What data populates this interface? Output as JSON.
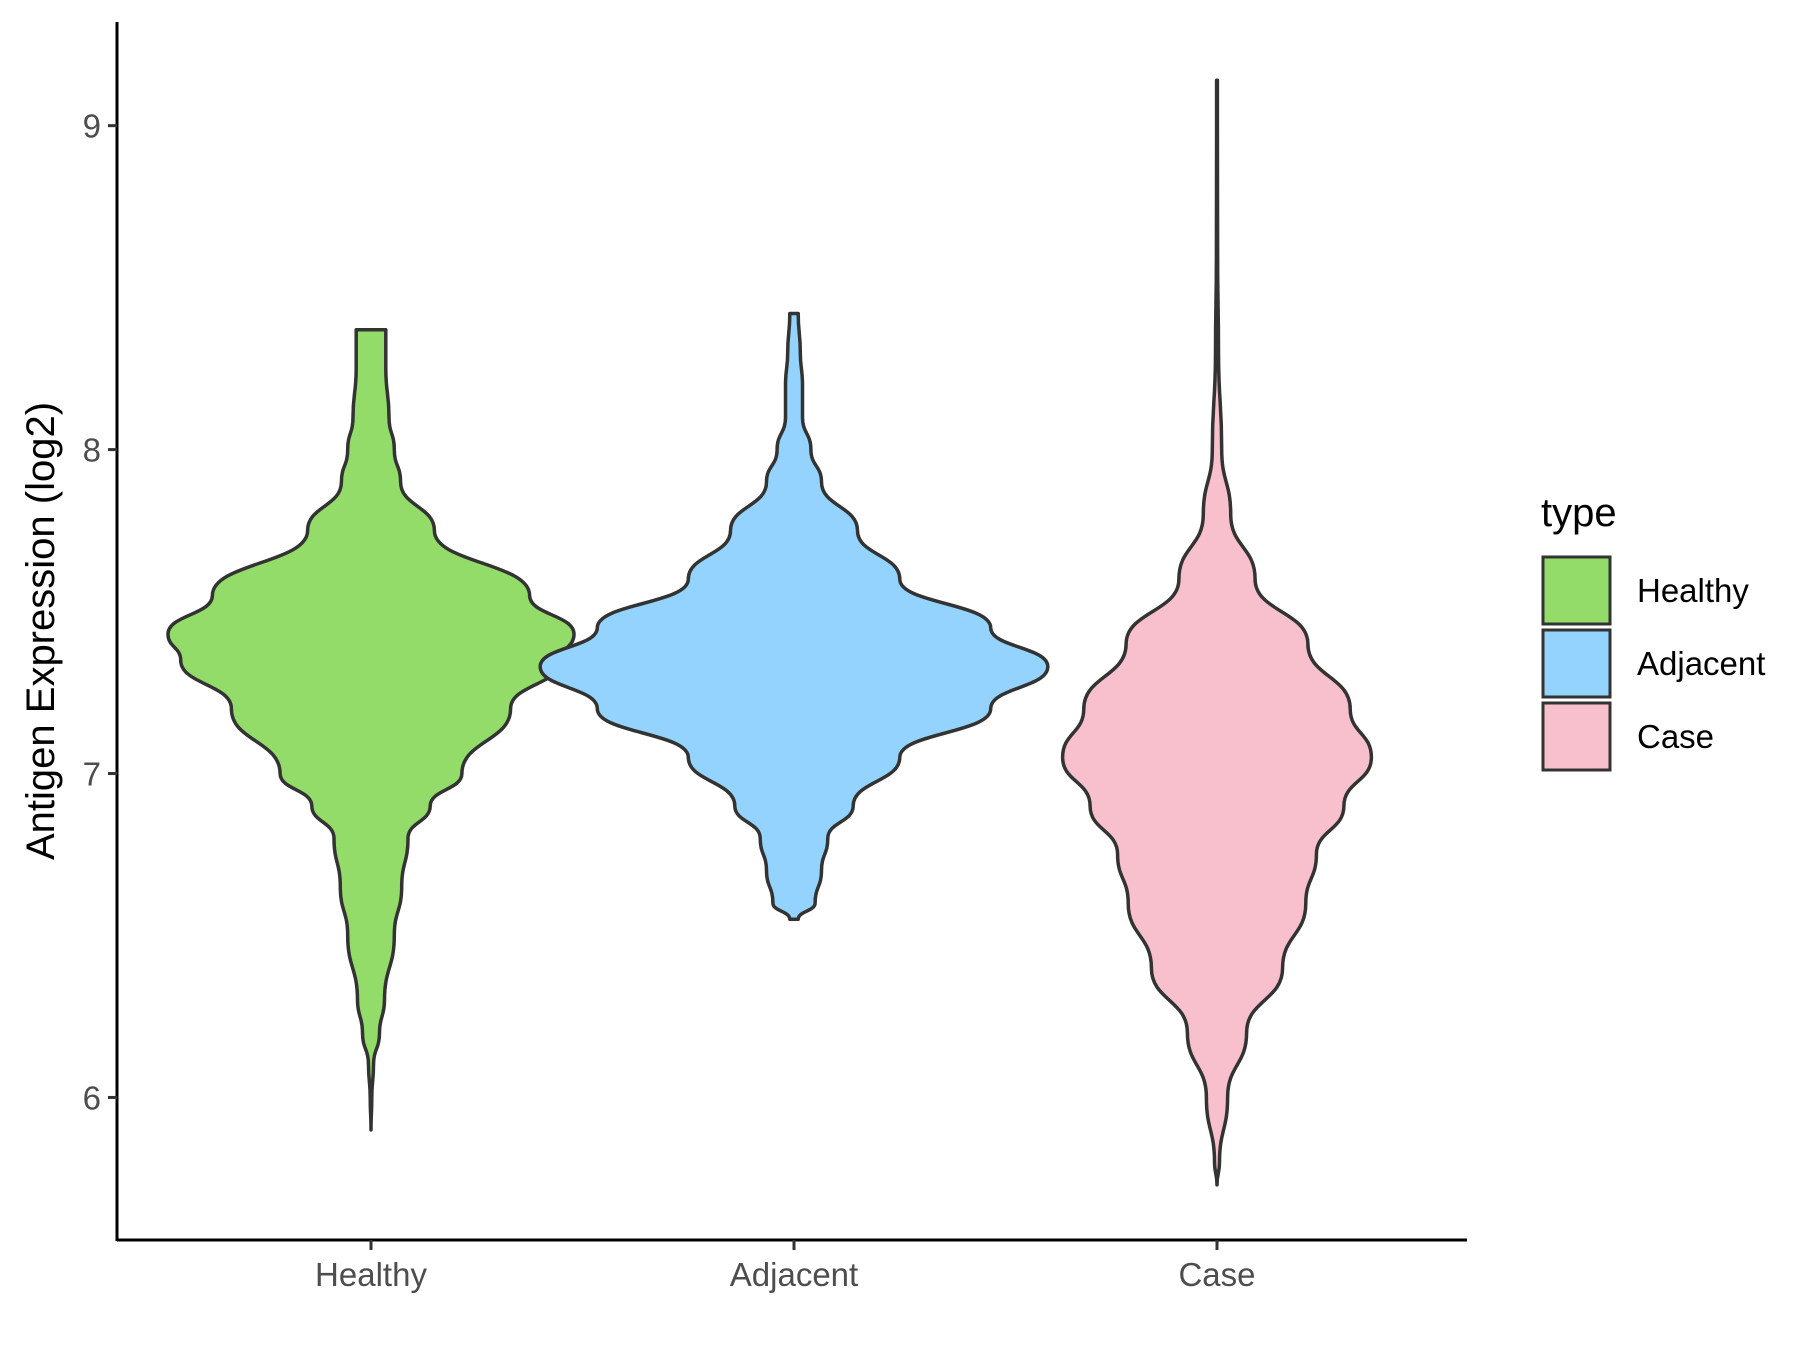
{
  "chart_data": {
    "type": "violin",
    "xlabel": "",
    "ylabel": "Antigen Expression (log2)",
    "ylim": [
      5.56,
      9.32
    ],
    "yticks": [
      6,
      7,
      8,
      9
    ],
    "categories": [
      "Healthy",
      "Adjacent",
      "Case"
    ],
    "grid": false,
    "legend": {
      "title": "type",
      "position": "right",
      "items": [
        "Healthy",
        "Adjacent",
        "Case"
      ]
    },
    "colors": {
      "Healthy": "#93dc6a",
      "Adjacent": "#93d3fd",
      "Case": "#f7c0cc",
      "outline": "#333333"
    },
    "series": [
      {
        "category": "Healthy",
        "min": 5.9,
        "max": 8.37,
        "max_width": 0.96,
        "density": [
          [
            5.9,
            0.0
          ],
          [
            6.0,
            0.004
          ],
          [
            6.1,
            0.012
          ],
          [
            6.2,
            0.04
          ],
          [
            6.3,
            0.064
          ],
          [
            6.5,
            0.11
          ],
          [
            6.65,
            0.145
          ],
          [
            6.8,
            0.175
          ],
          [
            6.9,
            0.28
          ],
          [
            7.0,
            0.43
          ],
          [
            7.2,
            0.66
          ],
          [
            7.35,
            0.9
          ],
          [
            7.43,
            0.96
          ],
          [
            7.55,
            0.75
          ],
          [
            7.75,
            0.3
          ],
          [
            7.9,
            0.14
          ],
          [
            8.0,
            0.11
          ],
          [
            8.1,
            0.085
          ],
          [
            8.25,
            0.07
          ],
          [
            8.37,
            0.07
          ]
        ]
      },
      {
        "category": "Adjacent",
        "min": 6.55,
        "max": 8.42,
        "max_width": 1.2,
        "density": [
          [
            6.55,
            0.02
          ],
          [
            6.6,
            0.1
          ],
          [
            6.7,
            0.13
          ],
          [
            6.8,
            0.16
          ],
          [
            6.9,
            0.28
          ],
          [
            7.05,
            0.5
          ],
          [
            7.2,
            0.93
          ],
          [
            7.33,
            1.2
          ],
          [
            7.45,
            0.93
          ],
          [
            7.6,
            0.5
          ],
          [
            7.75,
            0.3
          ],
          [
            7.9,
            0.13
          ],
          [
            8.0,
            0.08
          ],
          [
            8.1,
            0.04
          ],
          [
            8.2,
            0.04
          ],
          [
            8.3,
            0.03
          ],
          [
            8.42,
            0.02
          ]
        ]
      },
      {
        "category": "Case",
        "min": 5.73,
        "max": 9.14,
        "max_width": 0.73,
        "density": [
          [
            5.73,
            0.0
          ],
          [
            5.8,
            0.012
          ],
          [
            6.0,
            0.05
          ],
          [
            6.2,
            0.14
          ],
          [
            6.4,
            0.31
          ],
          [
            6.6,
            0.42
          ],
          [
            6.75,
            0.47
          ],
          [
            6.9,
            0.6
          ],
          [
            7.05,
            0.73
          ],
          [
            7.2,
            0.63
          ],
          [
            7.4,
            0.43
          ],
          [
            7.6,
            0.18
          ],
          [
            7.8,
            0.065
          ],
          [
            8.0,
            0.022
          ],
          [
            8.3,
            0.007
          ],
          [
            8.6,
            0.003
          ],
          [
            9.0,
            0.002
          ],
          [
            9.14,
            0.002
          ]
        ]
      }
    ]
  }
}
